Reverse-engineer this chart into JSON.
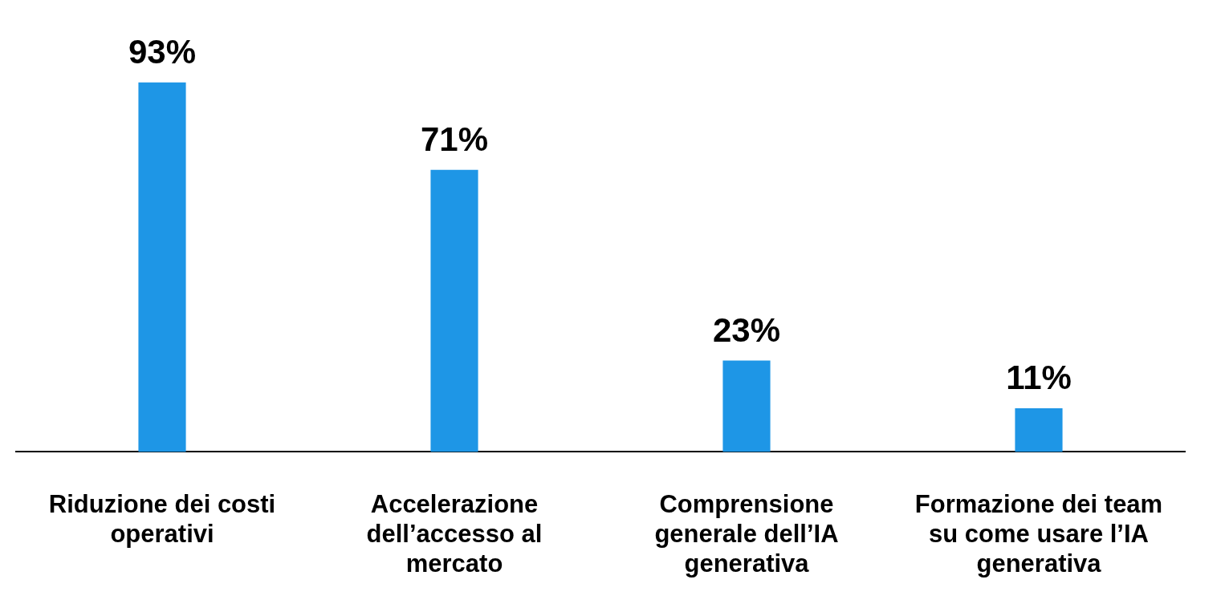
{
  "chart_data": {
    "type": "bar",
    "categories": [
      "Riduzione dei costi operativi",
      "Accelerazione dell’accesso al mercato",
      "Comprensione generale dell’IA generativa",
      "Formazione dei team su come usare l’IA generativa"
    ],
    "values": [
      93,
      71,
      23,
      11
    ],
    "color": "#1e96e6",
    "value_labels": [
      "93%",
      "71%",
      "23%",
      "11%"
    ]
  }
}
